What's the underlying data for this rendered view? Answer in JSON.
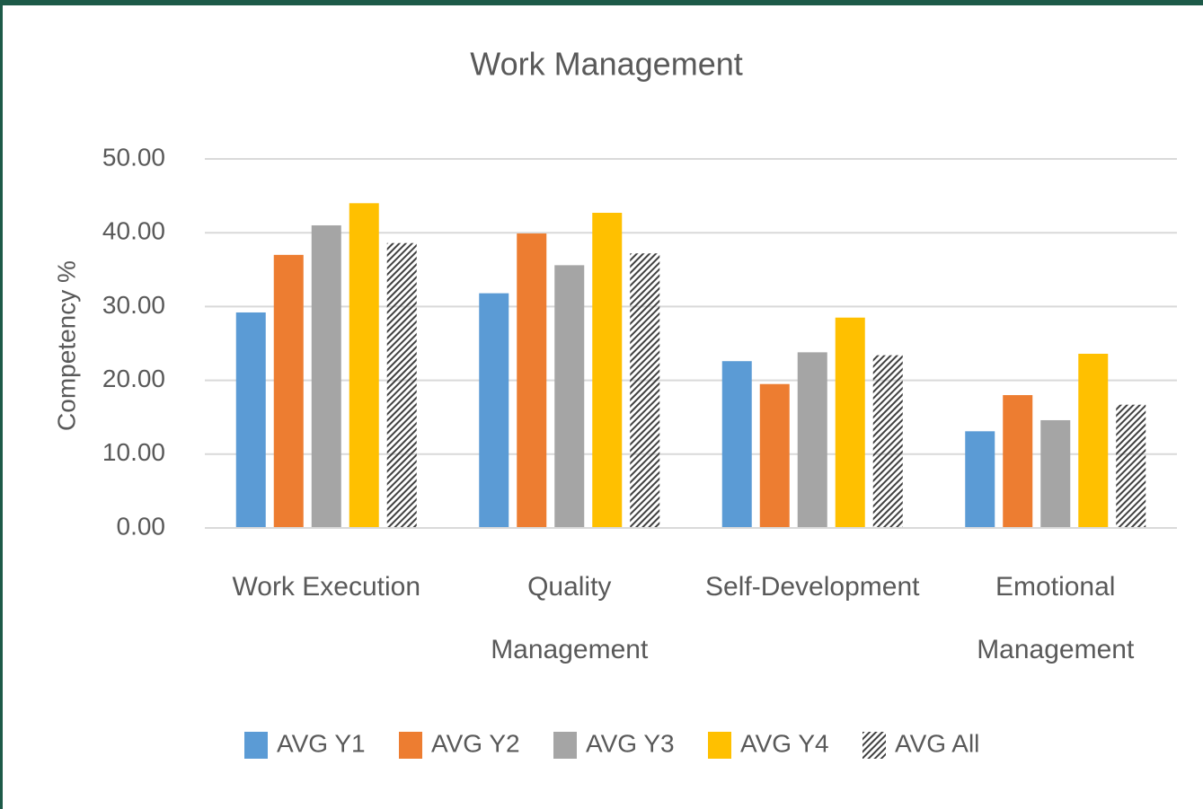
{
  "chart_data": {
    "type": "bar",
    "title": "Work Management",
    "y_label": "Competency %",
    "categories": [
      "Work Execution",
      "Quality Management",
      "Self-Development",
      "Emotional Management"
    ],
    "series": [
      {
        "name": "AVG Y1",
        "color": "#5b9bd5",
        "values": [
          29.2,
          31.8,
          22.6,
          13.1
        ]
      },
      {
        "name": "AVG Y2",
        "color": "#ed7d31",
        "values": [
          37.0,
          39.9,
          19.5,
          18.0
        ]
      },
      {
        "name": "AVG Y3",
        "color": "#a5a5a5",
        "values": [
          41.0,
          35.6,
          23.8,
          14.6
        ]
      },
      {
        "name": "AVG Y4",
        "color": "#ffc000",
        "values": [
          44.0,
          42.7,
          28.5,
          23.6
        ]
      },
      {
        "name": "AVG All",
        "color": "#404040",
        "pattern": "hatch",
        "values": [
          38.6,
          37.2,
          23.4,
          16.7
        ]
      }
    ],
    "ylim": [
      0,
      50
    ],
    "yticks": [
      {
        "value": 0,
        "label": "0.00"
      },
      {
        "value": 10,
        "label": "10.00"
      },
      {
        "value": 20,
        "label": "20.00"
      },
      {
        "value": 30,
        "label": "30.00"
      },
      {
        "value": 40,
        "label": "40.00"
      },
      {
        "value": 50,
        "label": "50.00"
      }
    ],
    "grid": true,
    "legend": "bottom"
  }
}
